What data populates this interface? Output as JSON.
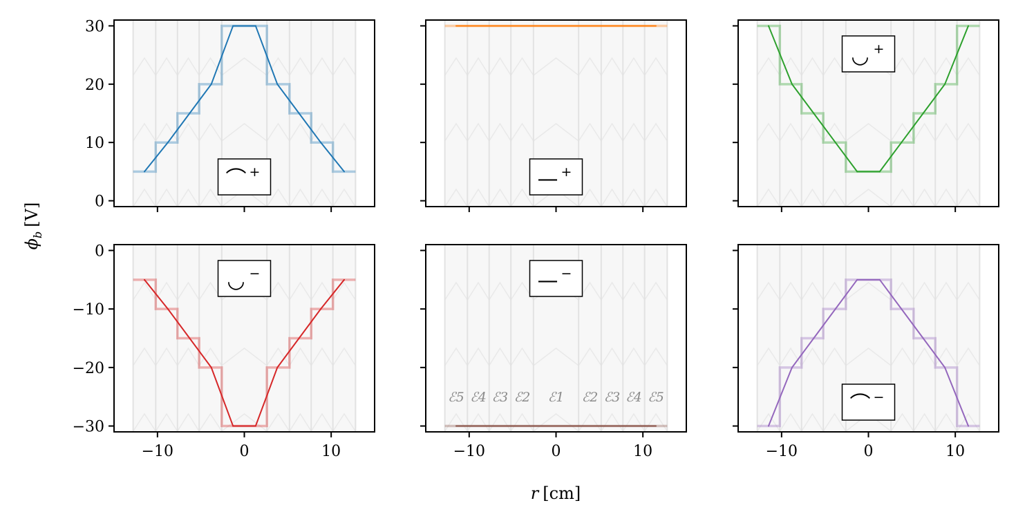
{
  "figure": {
    "ylabel_main": "ϕ",
    "ylabel_sub": "b",
    "ylabel_unit": "[V]",
    "xlabel_main": "r",
    "xlabel_unit": "[cm]",
    "electrode_labels": [
      "ℰ5",
      "ℰ4",
      "ℰ3",
      "ℰ2",
      "ℰ1",
      "ℰ2",
      "ℰ3",
      "ℰ4",
      "ℰ5"
    ]
  },
  "chart_data": [
    {
      "type": "line",
      "panel": "top-left",
      "color": "#1f77b4",
      "legend_symbol": "⌒",
      "legend_sign": "+",
      "legend_loc": "bottom-center",
      "x": [
        -11.5,
        -8.8,
        -6.3,
        -3.8,
        -1.3,
        1.3,
        3.8,
        6.3,
        8.8,
        11.5
      ],
      "y": [
        5,
        10,
        15,
        20,
        30,
        30,
        20,
        15,
        10,
        5
      ],
      "electrode_edges": [
        -12.8,
        -10.2,
        -7.7,
        -5.2,
        -2.6,
        2.6,
        5.2,
        7.7,
        10.2,
        12.8
      ],
      "electrode_values": [
        5,
        10,
        15,
        20,
        30,
        20,
        15,
        10,
        5
      ],
      "xlim": [
        -15,
        15
      ],
      "ylim": [
        -1,
        31
      ],
      "xticks": [
        -10,
        0,
        10
      ],
      "yticks": [
        0,
        10,
        20,
        30
      ],
      "show_xticklabels": false,
      "show_yticklabels": true
    },
    {
      "type": "line",
      "panel": "top-middle",
      "color": "#ff7f0e",
      "legend_symbol": "—",
      "legend_sign": "+",
      "legend_loc": "bottom-center",
      "x": [
        -11.5,
        11.5
      ],
      "y": [
        30,
        30
      ],
      "electrode_edges": [
        -12.8,
        -10.2,
        -7.7,
        -5.2,
        -2.6,
        2.6,
        5.2,
        7.7,
        10.2,
        12.8
      ],
      "electrode_values": [
        30,
        30,
        30,
        30,
        30,
        30,
        30,
        30,
        30
      ],
      "xlim": [
        -15,
        15
      ],
      "ylim": [
        -1,
        31
      ],
      "xticks": [
        -10,
        0,
        10
      ],
      "yticks": [
        0,
        10,
        20,
        30
      ],
      "show_xticklabels": false,
      "show_yticklabels": false
    },
    {
      "type": "line",
      "panel": "top-right",
      "color": "#2ca02c",
      "legend_symbol": "◡",
      "legend_sign": "+",
      "legend_loc": "top-center",
      "x": [
        -11.5,
        -8.8,
        -6.3,
        -3.8,
        -1.3,
        1.3,
        3.8,
        6.3,
        8.8,
        11.5
      ],
      "y": [
        30,
        20,
        15,
        10,
        5,
        5,
        10,
        15,
        20,
        30
      ],
      "electrode_edges": [
        -12.8,
        -10.2,
        -7.7,
        -5.2,
        -2.6,
        2.6,
        5.2,
        7.7,
        10.2,
        12.8
      ],
      "electrode_values": [
        30,
        20,
        15,
        10,
        5,
        10,
        15,
        20,
        30
      ],
      "xlim": [
        -15,
        15
      ],
      "ylim": [
        -1,
        31
      ],
      "xticks": [
        -10,
        0,
        10
      ],
      "yticks": [
        0,
        10,
        20,
        30
      ],
      "show_xticklabels": false,
      "show_yticklabels": false
    },
    {
      "type": "line",
      "panel": "bottom-left",
      "color": "#d62728",
      "legend_symbol": "◡",
      "legend_sign": "−",
      "legend_loc": "top-center",
      "x": [
        -11.5,
        -8.8,
        -6.3,
        -3.8,
        -1.3,
        1.3,
        3.8,
        6.3,
        8.8,
        11.5
      ],
      "y": [
        -5,
        -10,
        -15,
        -20,
        -30,
        -30,
        -20,
        -15,
        -10,
        -5
      ],
      "electrode_edges": [
        -12.8,
        -10.2,
        -7.7,
        -5.2,
        -2.6,
        2.6,
        5.2,
        7.7,
        10.2,
        12.8
      ],
      "electrode_values": [
        -5,
        -10,
        -15,
        -20,
        -30,
        -20,
        -15,
        -10,
        -5
      ],
      "xlim": [
        -15,
        15
      ],
      "ylim": [
        -31,
        1
      ],
      "xticks": [
        -10,
        0,
        10
      ],
      "yticks": [
        0,
        -10,
        -20,
        -30
      ],
      "show_xticklabels": true,
      "show_yticklabels": true
    },
    {
      "type": "line",
      "panel": "bottom-middle",
      "color": "#8c564b",
      "legend_symbol": "—",
      "legend_sign": "−",
      "legend_loc": "top-center",
      "x": [
        -11.5,
        11.5
      ],
      "y": [
        -30,
        -30
      ],
      "electrode_edges": [
        -12.8,
        -10.2,
        -7.7,
        -5.2,
        -2.6,
        2.6,
        5.2,
        7.7,
        10.2,
        12.8
      ],
      "electrode_values": [
        -30,
        -30,
        -30,
        -30,
        -30,
        -30,
        -30,
        -30,
        -30
      ],
      "xlim": [
        -15,
        15
      ],
      "ylim": [
        -31,
        1
      ],
      "xticks": [
        -10,
        0,
        10
      ],
      "yticks": [
        0,
        -10,
        -20,
        -30
      ],
      "show_xticklabels": true,
      "show_yticklabels": false,
      "show_electrode_labels": true,
      "electrode_label_y": -25
    },
    {
      "type": "line",
      "panel": "bottom-right",
      "color": "#9467bd",
      "legend_symbol": "⌒",
      "legend_sign": "−",
      "legend_loc": "bottom-center",
      "x": [
        -11.5,
        -8.8,
        -6.3,
        -3.8,
        -1.3,
        1.3,
        3.8,
        6.3,
        8.8,
        11.5
      ],
      "y": [
        -30,
        -20,
        -15,
        -10,
        -5,
        -5,
        -10,
        -15,
        -20,
        -30
      ],
      "electrode_edges": [
        -12.8,
        -10.2,
        -7.7,
        -5.2,
        -2.6,
        2.6,
        5.2,
        7.7,
        10.2,
        12.8
      ],
      "electrode_values": [
        -30,
        -20,
        -15,
        -10,
        -5,
        -10,
        -15,
        -20,
        -30
      ],
      "xlim": [
        -15,
        15
      ],
      "ylim": [
        -31,
        1
      ],
      "xticks": [
        -10,
        0,
        10
      ],
      "yticks": [
        0,
        -10,
        -20,
        -30
      ],
      "show_xticklabels": true,
      "show_yticklabels": false
    }
  ]
}
